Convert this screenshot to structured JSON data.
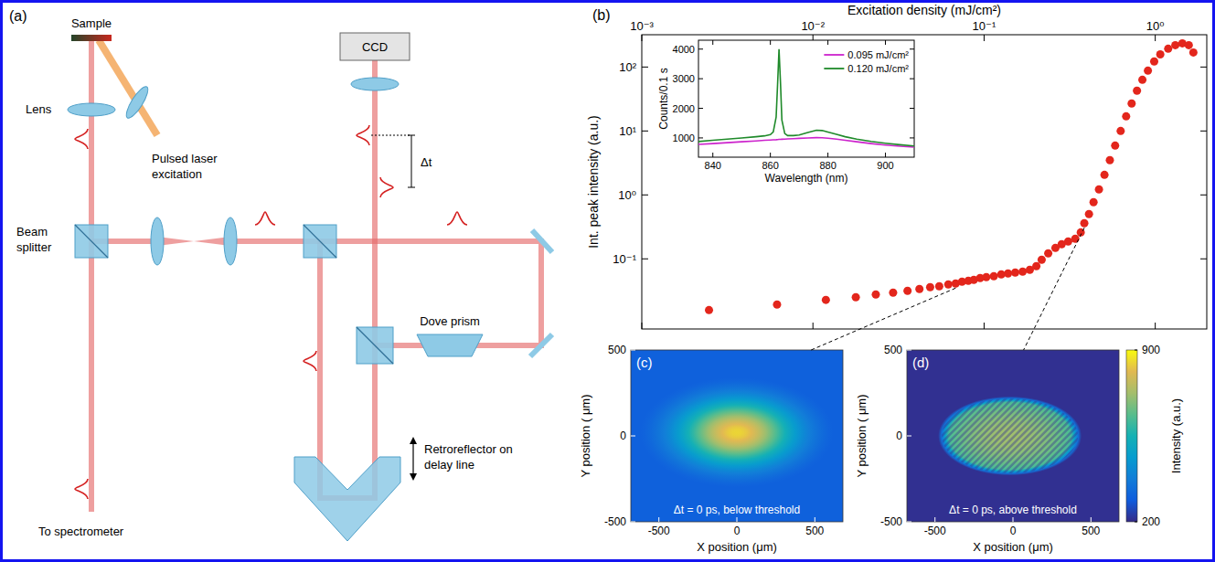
{
  "diagram": {
    "panel_label": "(a)",
    "labels": {
      "sample": "Sample",
      "lens": "Lens",
      "laser": "Pulsed laser excitation",
      "beam_splitter": "Beam splitter",
      "spectrometer": "To spectrometer",
      "ccd": "CCD",
      "delay": "Δt",
      "dove_prism": "Dove prism",
      "retroreflector": "Retroreflector on delay line"
    }
  },
  "chart_data": [
    {
      "type": "scatter",
      "panel_label": "(b)",
      "xlabel": "Excitation density (mJ/cm²)",
      "ylabel": "Int. peak intensity (a.u.)",
      "log": true,
      "grid": false,
      "color": "#e3261c",
      "marker": "circle",
      "xlim": [
        0.001,
        2
      ],
      "xticks": [
        {
          "value": 0.001,
          "label": "10⁻³"
        },
        {
          "value": 0.01,
          "label": "10⁻²"
        },
        {
          "value": 0.1,
          "label": "10⁻¹"
        },
        {
          "value": 1,
          "label": "10⁰"
        }
      ],
      "ylim": [
        0.008,
        320
      ],
      "yticks": [
        {
          "value": 0.1,
          "label": "10⁻¹"
        },
        {
          "value": 1,
          "label": "10⁰"
        },
        {
          "value": 10,
          "label": "10¹"
        },
        {
          "value": 100,
          "label": "10²"
        }
      ],
      "x": [
        0.00247,
        0.00617,
        0.0119,
        0.0178,
        0.0233,
        0.0294,
        0.0357,
        0.0419,
        0.0484,
        0.0547,
        0.0618,
        0.0682,
        0.0743,
        0.0809,
        0.0871,
        0.0948,
        0.103,
        0.114,
        0.126,
        0.138,
        0.152,
        0.168,
        0.185,
        0.202,
        0.217,
        0.237,
        0.261,
        0.284,
        0.31,
        0.341,
        0.367,
        0.385,
        0.41,
        0.436,
        0.469,
        0.505,
        0.543,
        0.583,
        0.628,
        0.676,
        0.728,
        0.782,
        0.841,
        0.906,
        0.986,
        1.07,
        1.19,
        1.31,
        1.44,
        1.57,
        1.67
      ],
      "values": [
        0.0158,
        0.0193,
        0.0228,
        0.0251,
        0.0277,
        0.0296,
        0.0316,
        0.0338,
        0.0361,
        0.0373,
        0.0398,
        0.0411,
        0.044,
        0.0454,
        0.0469,
        0.0501,
        0.0518,
        0.0536,
        0.0572,
        0.059,
        0.0611,
        0.0631,
        0.0675,
        0.0769,
        0.0968,
        0.122,
        0.148,
        0.169,
        0.187,
        0.206,
        0.259,
        0.361,
        0.501,
        0.769,
        1.22,
        2.06,
        3.49,
        5.9,
        10.0,
        16.9,
        26.9,
        42.6,
        63.1,
        87.7,
        122,
        158,
        193,
        220,
        235,
        220,
        169
      ]
    },
    {
      "type": "line",
      "xlabel": "Wavelength (nm)",
      "ylabel": "Counts/0.1 s",
      "legend": "upper right",
      "xlim": [
        835,
        910
      ],
      "xticks": [
        840,
        860,
        880,
        900
      ],
      "ylim": [
        350,
        4300
      ],
      "yticks": [
        1000,
        2000,
        3000,
        4000
      ],
      "x": [
        835,
        840,
        845,
        850,
        855,
        858,
        860,
        861,
        862,
        862.5,
        863,
        863.5,
        864,
        865,
        866,
        868,
        870,
        873,
        876,
        878,
        880,
        883,
        886,
        890,
        895,
        900,
        905,
        910
      ],
      "series": [
        {
          "name": "0.095 mJ/cm²",
          "color": "#cc22cc",
          "values": [
            780,
            810,
            840,
            870,
            900,
            920,
            930,
            935,
            940,
            945,
            950,
            952,
            955,
            960,
            965,
            975,
            985,
            1000,
            1010,
            1005,
            990,
            960,
            920,
            870,
            810,
            760,
            720,
            690
          ]
        },
        {
          "name": "0.120 mJ/cm²",
          "color": "#1f8a2a",
          "values": [
            880,
            920,
            960,
            1000,
            1040,
            1070,
            1110,
            1200,
            1700,
            2800,
            4000,
            2900,
            1600,
            1150,
            1080,
            1080,
            1100,
            1180,
            1260,
            1250,
            1200,
            1120,
            1040,
            960,
            880,
            820,
            770,
            730
          ]
        }
      ]
    },
    {
      "type": "image",
      "panel_label": "(c)",
      "annotation": "Δt = 0 ps, below threshold",
      "xlabel": "X position (μm)",
      "ylabel": "Y position ( μm)",
      "xlim": [
        -680,
        680
      ],
      "xticks": [
        -500,
        0,
        500
      ],
      "ylim": [
        -500,
        500
      ],
      "yticks": [
        -500,
        0,
        500
      ],
      "color_range": [
        200,
        900
      ],
      "spot": {
        "x": 0,
        "y": 20,
        "x_radius": 620,
        "y_radius": 320,
        "peak": 850,
        "background": 300
      }
    },
    {
      "type": "image",
      "panel_label": "(d)",
      "annotation": "Δt = 0 ps, above threshold",
      "xlabel": "X position (μm)",
      "ylabel": "Y position ( μm)",
      "xlim": [
        -680,
        680
      ],
      "xticks": [
        -500,
        0,
        500
      ],
      "ylim": [
        -500,
        500
      ],
      "yticks": [
        -500,
        0,
        500
      ],
      "color_range": [
        200,
        900
      ],
      "spot": {
        "x": -20,
        "y": 0,
        "x_radius": 460,
        "y_radius": 230,
        "peak": 720,
        "background": 210
      },
      "fringe_period": 30,
      "colorbar": {
        "label": "Intensity (a.u.)",
        "ticks": [
          200,
          900
        ]
      }
    }
  ]
}
